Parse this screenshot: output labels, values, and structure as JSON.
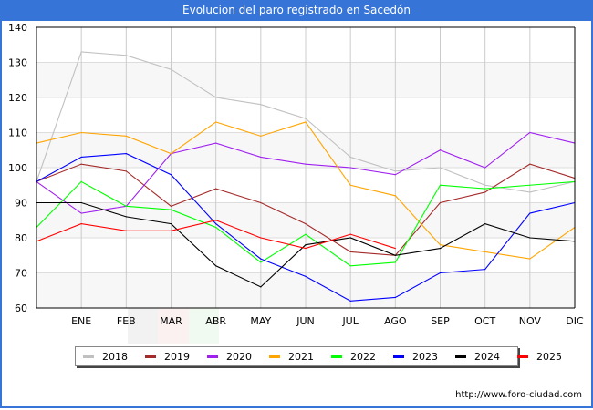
{
  "header": {
    "title": "Evolucion del paro registrado en Sacedón"
  },
  "footer": {
    "url": "http://www.foro-ciudad.com"
  },
  "chart_data": {
    "type": "line",
    "title": "Evolucion del paro registrado en Sacedón",
    "xlabel": "",
    "ylabel": "",
    "x": [
      "",
      "ENE",
      "FEB",
      "MAR",
      "ABR",
      "MAY",
      "JUN",
      "JUL",
      "AGO",
      "SEP",
      "OCT",
      "NOV",
      "DIC"
    ],
    "x_tick_labels": [
      "ENE",
      "FEB",
      "MAR",
      "ABR",
      "MAY",
      "JUN",
      "JUL",
      "AGO",
      "SEP",
      "OCT",
      "NOV",
      "DIC"
    ],
    "ylim": [
      60,
      140
    ],
    "y_ticks": [
      60,
      70,
      80,
      90,
      100,
      110,
      120,
      130,
      140
    ],
    "grid": true,
    "legend_position": "bottom",
    "series": [
      {
        "name": "2018",
        "color": "#c0c0c0",
        "values": [
          96,
          133,
          132,
          128,
          120,
          118,
          114,
          103,
          99,
          100,
          95,
          93,
          96
        ]
      },
      {
        "name": "2019",
        "color": "#a52a2a",
        "values": [
          96,
          101,
          99,
          89,
          94,
          90,
          84,
          76,
          75,
          90,
          93,
          101,
          97
        ]
      },
      {
        "name": "2020",
        "color": "#a020f0",
        "values": [
          96,
          87,
          89,
          104,
          107,
          103,
          101,
          100,
          98,
          105,
          100,
          110,
          107
        ]
      },
      {
        "name": "2021",
        "color": "#ffa500",
        "values": [
          107,
          110,
          109,
          104,
          113,
          109,
          113,
          95,
          92,
          78,
          76,
          74,
          83
        ]
      },
      {
        "name": "2022",
        "color": "#00ff00",
        "values": [
          83,
          96,
          89,
          88,
          83,
          73,
          81,
          72,
          73,
          95,
          94,
          95,
          96
        ]
      },
      {
        "name": "2023",
        "color": "#0000ff",
        "values": [
          96,
          103,
          104,
          98,
          84,
          74,
          69,
          62,
          63,
          70,
          71,
          87,
          90
        ]
      },
      {
        "name": "2024",
        "color": "#000000",
        "values": [
          90,
          90,
          86,
          84,
          72,
          66,
          78,
          80,
          75,
          77,
          84,
          80,
          79
        ]
      },
      {
        "name": "2025",
        "color": "#ff0000",
        "values": [
          79,
          84,
          82,
          82,
          85,
          80,
          77,
          81,
          77,
          null,
          null,
          null,
          null
        ]
      }
    ]
  }
}
